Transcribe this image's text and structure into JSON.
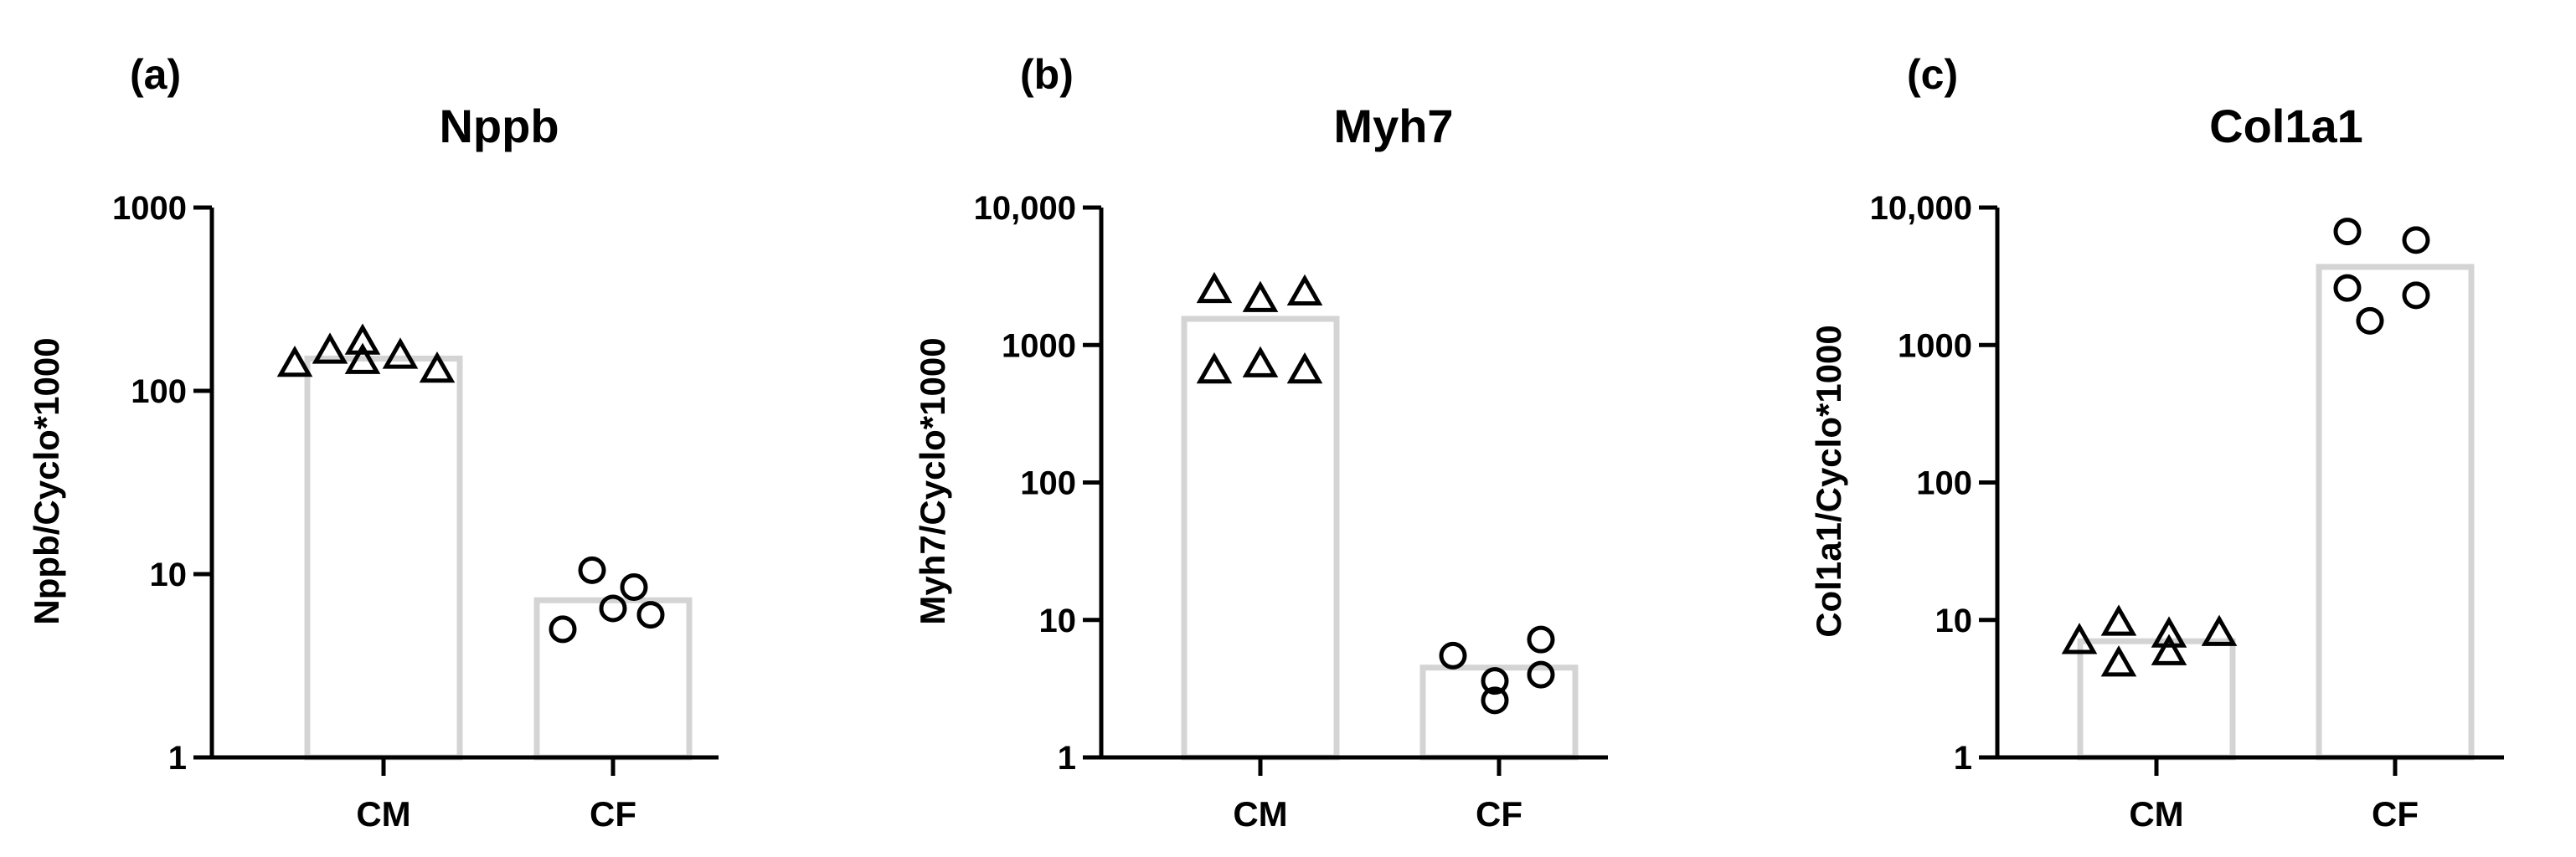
{
  "chart_data": [
    {
      "type": "bar",
      "panel_label": "(a)",
      "title": "Nppb",
      "ylabel": "Nppb/Cyclo*1000",
      "yscale": "log",
      "ylim": [
        1,
        1000
      ],
      "yticks": [
        1,
        10,
        100,
        1000
      ],
      "ytick_labels": [
        "1",
        "10",
        "100",
        "1000"
      ],
      "categories": [
        "CM",
        "CF"
      ],
      "bars": [
        150,
        7.2
      ],
      "points": [
        {
          "category": "CM",
          "marker": "triangle",
          "values": [
            140,
            165,
            185,
            145,
            155,
            130
          ]
        },
        {
          "category": "CF",
          "marker": "circle",
          "values": [
            5,
            10.5,
            6.5,
            8.5,
            6
          ]
        }
      ]
    },
    {
      "type": "bar",
      "panel_label": "(b)",
      "title": "Myh7",
      "ylabel": "Myh7/Cyclo*1000",
      "yscale": "log",
      "ylim": [
        1,
        10000
      ],
      "yticks": [
        1,
        10,
        100,
        1000,
        10000
      ],
      "ytick_labels": [
        "1",
        "10",
        "100",
        "1000",
        "10,000"
      ],
      "categories": [
        "CM",
        "CF"
      ],
      "bars": [
        1550,
        4.5
      ],
      "points": [
        {
          "category": "CM",
          "marker": "triangle",
          "values": [
            2500,
            650,
            2150,
            720,
            2400,
            650
          ]
        },
        {
          "category": "CF",
          "marker": "circle",
          "values": [
            5.5,
            3.6,
            2.6,
            7.2,
            4
          ]
        }
      ]
    },
    {
      "type": "bar",
      "panel_label": "(c)",
      "title": "Col1a1",
      "ylabel": "Col1a1/Cyclo*1000",
      "yscale": "log",
      "ylim": [
        1,
        10000
      ],
      "yticks": [
        1,
        10,
        100,
        1000,
        10000
      ],
      "ytick_labels": [
        "1",
        "10",
        "100",
        "1000",
        "10,000"
      ],
      "categories": [
        "CM",
        "CF"
      ],
      "bars": [
        7,
        3700
      ],
      "points": [
        {
          "category": "CM",
          "marker": "triangle",
          "values": [
            7,
            9.5,
            4.8,
            5.8,
            7.8,
            8
          ]
        },
        {
          "category": "CF",
          "marker": "circle",
          "values": [
            6700,
            2600,
            1500,
            2300,
            5800
          ]
        }
      ]
    }
  ]
}
